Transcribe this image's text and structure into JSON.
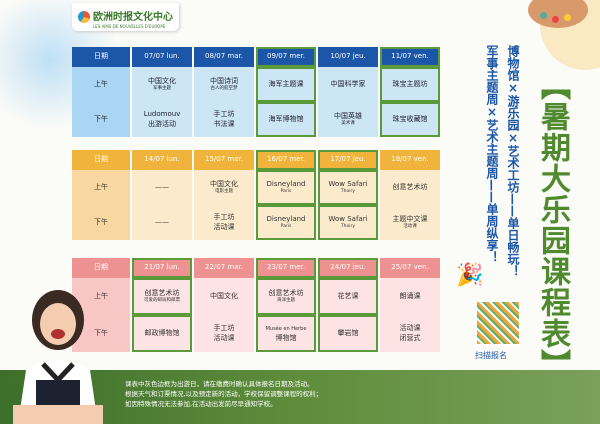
{
  "logo": {
    "name_cn": "欧洲时报文化中心",
    "name_fr": "LES AMIS DE NOUVELLES D'EUROPE"
  },
  "title": "【暑期大乐园课程表】",
  "subtitle_1": "博物馆×游乐园×艺术工坊——单日畅玩！",
  "subtitle_2": "军事主题周×艺术主题周——单周纵享！",
  "scan_label": "扫描报名",
  "colors": {
    "week1": "#1b56a8",
    "week2": "#f0b43c",
    "week3": "#ee9191",
    "highlight": "#5a9a3a"
  },
  "weeks": [
    {
      "header": [
        "日期",
        "07/07 lun.",
        "08/07 mar.",
        "09/07 mer.",
        "10/07 jeu.",
        "11/07 ven."
      ],
      "am": {
        "label": "上午",
        "cells": [
          [
            "中国文化",
            "军事主题"
          ],
          [
            "中国诗词",
            "古人的航空梦"
          ],
          [
            "海军主题课",
            ""
          ],
          [
            "中国科学家",
            ""
          ],
          [
            "珠宝主题坊",
            ""
          ]
        ]
      },
      "pm": {
        "label": "下午",
        "cells": [
          [
            "Ludomouv",
            "出游活动"
          ],
          [
            "手工坊",
            "书法课"
          ],
          [
            "海军博物馆",
            ""
          ],
          [
            "中国英雄",
            "美术课"
          ],
          [
            "珠宝收藏馆",
            ""
          ]
        ]
      },
      "outing_days": [
        3,
        5
      ]
    },
    {
      "header": [
        "日期",
        "14/07 lun.",
        "15/07 mar.",
        "16/07 mer.",
        "17/07 jeu.",
        "18/07 ven."
      ],
      "am": {
        "label": "上午",
        "cells": [
          [
            "——",
            ""
          ],
          [
            "中国文化",
            "电影主题"
          ],
          [
            "Disneyland",
            "Paris"
          ],
          [
            "Wow Safari",
            "Thoiry"
          ],
          [
            "创意艺术坊",
            ""
          ]
        ]
      },
      "pm": {
        "label": "下午",
        "cells": [
          [
            "——",
            ""
          ],
          [
            "手工坊",
            "活动课"
          ],
          [
            "Disneyland",
            "Paris"
          ],
          [
            "Wow Safari",
            "Thoiry"
          ],
          [
            "主题中文课",
            "活动课"
          ]
        ]
      },
      "outing_days": [
        3,
        4
      ]
    },
    {
      "header": [
        "日期",
        "21/07 lun.",
        "22/07 mar.",
        "23/07 mer.",
        "24/07 jeu.",
        "25/07 ven."
      ],
      "am": {
        "label": "上午",
        "cells": [
          [
            "创意艺术坊",
            "可爱的邮局和邮票"
          ],
          [
            "中国文化",
            ""
          ],
          [
            "创意艺术坊",
            "海洋主题"
          ],
          [
            "花艺课",
            ""
          ],
          [
            "朗诵课",
            ""
          ]
        ]
      },
      "pm": {
        "label": "下午",
        "cells": [
          [
            "邮政博物馆",
            ""
          ],
          [
            "手工坊",
            "活动课"
          ],
          [
            "Musée en Herbe",
            "博物馆"
          ],
          [
            "攀岩馆",
            ""
          ],
          [
            "活动课",
            "闭营式"
          ]
        ]
      },
      "outing_days": [
        1,
        3,
        4
      ]
    }
  ],
  "notes": [
    "课表中灰色边框为出游日，请在缴费时确认具体报名日期及活动。",
    "根据天气和订票情况,以及预定新的活动，学校保留调整课程的权利；",
    "如因特殊情况无法参加,在活动出发前尽早通知学校。"
  ]
}
